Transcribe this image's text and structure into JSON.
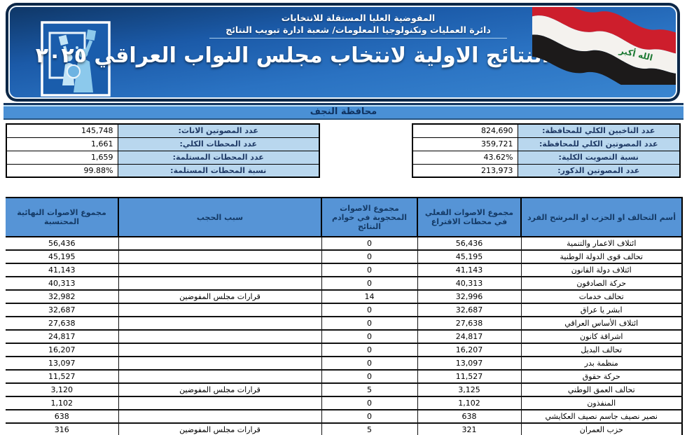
{
  "header": {
    "org_line1": "المفوضية العليا المستقلة للانتخابات",
    "org_line2": "دائرة العمليات وتكنولوجيا المعلومات/ شعبة ادارة تبويب النتائج",
    "title": "النتائج الاولية لانتخاب مجلس النواب العراقي ٢٠٢٥",
    "flag_phrase": "الله أكبر"
  },
  "governorate": {
    "title": "محافظة النجف"
  },
  "summary": {
    "right": [
      {
        "label": "عدد الناخبين الكلي للمحافظة:",
        "value": "824,690"
      },
      {
        "label": "عدد المصوتين الكلي للمحافظة:",
        "value": "359,721"
      },
      {
        "label": "نسبة التصويت الكلية:",
        "value": "43.62%"
      },
      {
        "label": "عدد المصوتين الذكور:",
        "value": "213,973"
      }
    ],
    "left": [
      {
        "label": "عدد المصوتين الاناث:",
        "value": "145,748"
      },
      {
        "label": "عدد المحطات الكلي:",
        "value": "1,661"
      },
      {
        "label": "عدد المحطات المستلمة:",
        "value": "1,659"
      },
      {
        "label": "نسبة المحطات المستلمة:",
        "value": "99.88%"
      }
    ]
  },
  "results": {
    "headers": {
      "name": "أسم التحالف او الحزب او المرشح الفرد",
      "station_votes": "مجموع الاصوات الفعلي في محطات الاقتراع",
      "blocked_votes": "مجموع الاصوات المحجوبة في خوادم النتائج",
      "block_reason": "سبب الحجب",
      "final_votes": "مجموع الاصوات النهائية المحتسبة"
    },
    "rows": [
      {
        "name": "ائتلاف الاعمار والتنمية",
        "station_votes": "56,436",
        "blocked_votes": "0",
        "block_reason": "",
        "final_votes": "56,436"
      },
      {
        "name": "تحالف قوى الدولة الوطنية",
        "station_votes": "45,195",
        "blocked_votes": "0",
        "block_reason": "",
        "final_votes": "45,195"
      },
      {
        "name": "ائتلاف دولة القانون",
        "station_votes": "41,143",
        "blocked_votes": "0",
        "block_reason": "",
        "final_votes": "41,143"
      },
      {
        "name": "حركة الصادقون",
        "station_votes": "40,313",
        "blocked_votes": "0",
        "block_reason": "",
        "final_votes": "40,313"
      },
      {
        "name": "تحالف خدمات",
        "station_votes": "32,996",
        "blocked_votes": "14",
        "block_reason": "قرارات مجلس المفوضين",
        "final_votes": "32,982"
      },
      {
        "name": "ابشر يا عراق",
        "station_votes": "32,687",
        "blocked_votes": "0",
        "block_reason": "",
        "final_votes": "32,687"
      },
      {
        "name": "ائتلاف الأساس العراقي",
        "station_votes": "27,638",
        "blocked_votes": "0",
        "block_reason": "",
        "final_votes": "27,638"
      },
      {
        "name": "اشراقة كانون",
        "station_votes": "24,817",
        "blocked_votes": "0",
        "block_reason": "",
        "final_votes": "24,817"
      },
      {
        "name": "تحالف البديل",
        "station_votes": "16,207",
        "blocked_votes": "0",
        "block_reason": "",
        "final_votes": "16,207"
      },
      {
        "name": "منظمة بدر",
        "station_votes": "13,097",
        "blocked_votes": "0",
        "block_reason": "",
        "final_votes": "13,097"
      },
      {
        "name": "حركة حقوق",
        "station_votes": "11,527",
        "blocked_votes": "0",
        "block_reason": "",
        "final_votes": "11,527"
      },
      {
        "name": "تحالف العمق الوطني",
        "station_votes": "3,125",
        "blocked_votes": "5",
        "block_reason": "قرارات مجلس المفوضين",
        "final_votes": "3,120"
      },
      {
        "name": "المنفذون",
        "station_votes": "1,102",
        "blocked_votes": "0",
        "block_reason": "",
        "final_votes": "1,102"
      },
      {
        "name": "نصير نصيف جاسم نصيف العكايشي",
        "station_votes": "638",
        "blocked_votes": "0",
        "block_reason": "",
        "final_votes": "638"
      },
      {
        "name": "حزب العمران",
        "station_votes": "321",
        "blocked_votes": "5",
        "block_reason": "قرارات مجلس المفوضين",
        "final_votes": "316"
      }
    ]
  },
  "colors": {
    "banner_navy": "#0c2747",
    "banner_blue": "#2a72c2",
    "bar_blue": "#4a90d5",
    "summary_label_bg": "#b9d7ee",
    "table_header_bg": "#5694d6",
    "text_navy": "#143a66",
    "flag_red": "#cd1e2c",
    "flag_green": "#1e7a34",
    "flag_black": "#1c1a1a"
  }
}
